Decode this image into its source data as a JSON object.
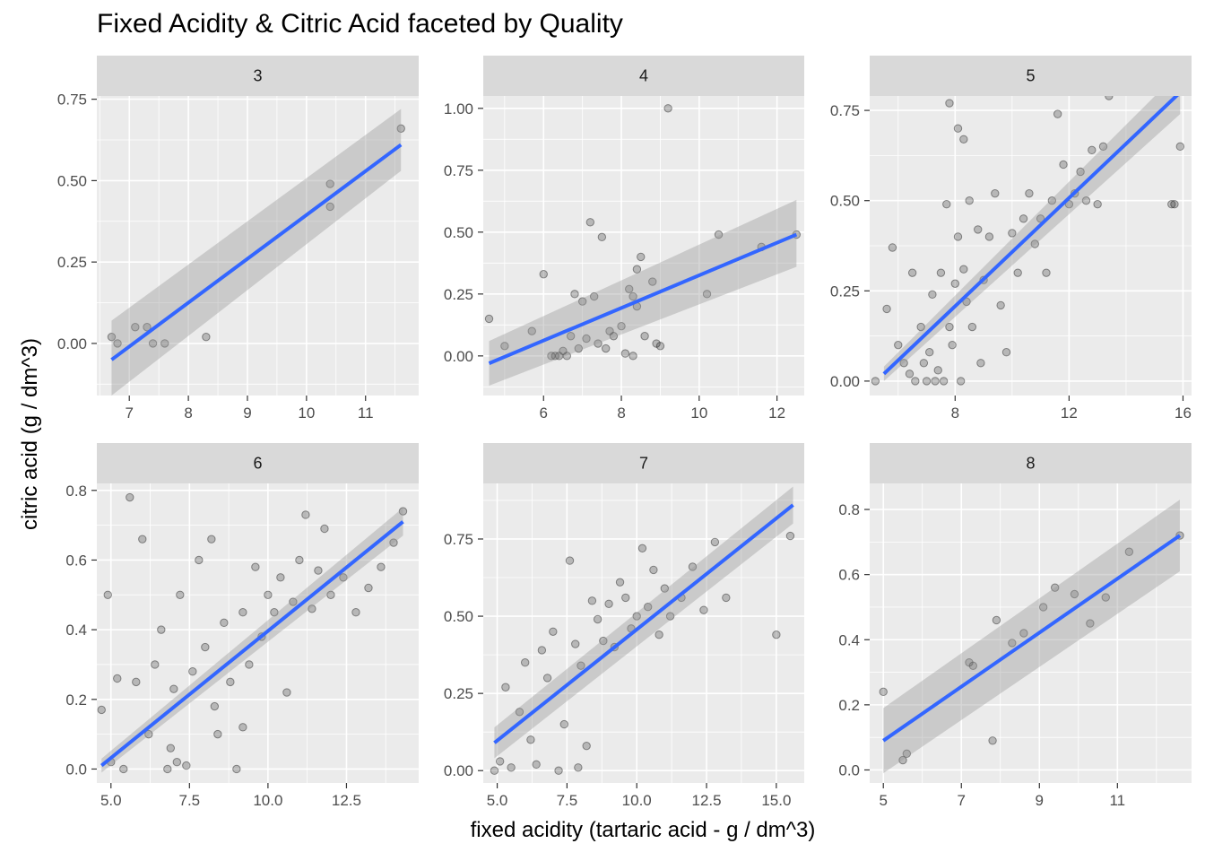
{
  "title": "Fixed Acidity & Citric Acid faceted by Quality",
  "xlabel": "fixed acidity (tartaric acid - g / dm^3)",
  "ylabel": "citric acid (g / dm^3)",
  "colors": {
    "panel_bg": "#EBEBEB",
    "strip_bg": "#D9D9D9",
    "grid": "#FFFFFF",
    "point": "#000000",
    "smooth_line": "#3366FF",
    "ribbon": "#999999"
  },
  "chart_data": [
    {
      "type": "scatter",
      "facet": "3",
      "xlim": [
        6.45,
        11.9
      ],
      "ylim": [
        -0.16,
        0.76
      ],
      "xticks": [
        7,
        8,
        9,
        10,
        11
      ],
      "xtick_labels": [
        "7",
        "8",
        "9",
        "10",
        "11"
      ],
      "yticks": [
        0,
        0.25,
        0.5,
        0.75
      ],
      "ytick_labels": [
        "0.00",
        "0.25",
        "0.50",
        "0.75"
      ],
      "points": [
        [
          6.7,
          0.02
        ],
        [
          6.8,
          0.0
        ],
        [
          7.1,
          0.05
        ],
        [
          7.3,
          0.05
        ],
        [
          7.4,
          0.0
        ],
        [
          7.6,
          0.0
        ],
        [
          8.3,
          0.02
        ],
        [
          10.4,
          0.42
        ],
        [
          10.4,
          0.49
        ],
        [
          11.6,
          0.66
        ]
      ],
      "fit": {
        "x": [
          6.7,
          11.6
        ],
        "y": [
          -0.05,
          0.61
        ],
        "lower": [
          -0.16,
          0.53
        ],
        "upper": [
          0.07,
          0.72
        ]
      }
    },
    {
      "type": "scatter",
      "facet": "4",
      "xlim": [
        4.45,
        12.7
      ],
      "ylim": [
        -0.16,
        1.05
      ],
      "xticks": [
        6,
        8,
        10,
        12
      ],
      "xtick_labels": [
        "6",
        "8",
        "10",
        "12"
      ],
      "yticks": [
        0,
        0.25,
        0.5,
        0.75,
        1.0
      ],
      "ytick_labels": [
        "0.00",
        "0.25",
        "0.50",
        "0.75",
        "1.00"
      ],
      "points": [
        [
          4.6,
          0.15
        ],
        [
          5.0,
          0.04
        ],
        [
          5.7,
          0.1
        ],
        [
          6.0,
          0.33
        ],
        [
          6.2,
          0.0
        ],
        [
          6.3,
          0.0
        ],
        [
          6.4,
          0.0
        ],
        [
          6.5,
          0.02
        ],
        [
          6.6,
          0.0
        ],
        [
          6.7,
          0.08
        ],
        [
          6.8,
          0.25
        ],
        [
          6.9,
          0.03
        ],
        [
          7.0,
          0.22
        ],
        [
          7.1,
          0.07
        ],
        [
          7.2,
          0.54
        ],
        [
          7.3,
          0.24
        ],
        [
          7.4,
          0.05
        ],
        [
          7.5,
          0.48
        ],
        [
          7.6,
          0.03
        ],
        [
          7.7,
          0.1
        ],
        [
          7.8,
          0.08
        ],
        [
          8.0,
          0.12
        ],
        [
          8.1,
          0.01
        ],
        [
          8.2,
          0.27
        ],
        [
          8.3,
          0.0
        ],
        [
          8.3,
          0.24
        ],
        [
          8.4,
          0.35
        ],
        [
          8.4,
          0.2
        ],
        [
          8.5,
          0.4
        ],
        [
          8.6,
          0.08
        ],
        [
          8.8,
          0.3
        ],
        [
          8.9,
          0.05
        ],
        [
          9.0,
          0.04
        ],
        [
          9.2,
          1.0
        ],
        [
          10.2,
          0.25
        ],
        [
          10.5,
          0.49
        ],
        [
          11.6,
          0.44
        ],
        [
          12.5,
          0.49
        ]
      ],
      "fit": {
        "x": [
          4.6,
          12.5
        ],
        "y": [
          -0.03,
          0.49
        ],
        "lower": [
          -0.12,
          0.36
        ],
        "upper": [
          0.06,
          0.63
        ]
      }
    },
    {
      "type": "scatter",
      "facet": "5",
      "xlim": [
        5.0,
        16.3
      ],
      "ylim": [
        -0.04,
        0.79
      ],
      "xticks": [
        8,
        12,
        16
      ],
      "xtick_labels": [
        "8",
        "12",
        "16"
      ],
      "yticks": [
        0,
        0.25,
        0.5,
        0.75
      ],
      "ytick_labels": [
        "0.00",
        "0.25",
        "0.50",
        "0.75"
      ],
      "points": [
        [
          5.2,
          0.0
        ],
        [
          5.6,
          0.2
        ],
        [
          5.8,
          0.37
        ],
        [
          6.0,
          0.1
        ],
        [
          6.2,
          0.05
        ],
        [
          6.4,
          0.02
        ],
        [
          6.5,
          0.3
        ],
        [
          6.6,
          0.0
        ],
        [
          6.8,
          0.15
        ],
        [
          6.9,
          0.05
        ],
        [
          7.0,
          0.0
        ],
        [
          7.1,
          0.08
        ],
        [
          7.2,
          0.24
        ],
        [
          7.3,
          0.0
        ],
        [
          7.4,
          0.03
        ],
        [
          7.5,
          0.3
        ],
        [
          7.6,
          0.0
        ],
        [
          7.7,
          0.49
        ],
        [
          7.8,
          0.15
        ],
        [
          7.9,
          0.1
        ],
        [
          8.0,
          0.27
        ],
        [
          8.1,
          0.4
        ],
        [
          8.2,
          0.0
        ],
        [
          8.3,
          0.31
        ],
        [
          8.4,
          0.22
        ],
        [
          8.5,
          0.5
        ],
        [
          8.6,
          0.15
        ],
        [
          8.8,
          0.42
        ],
        [
          8.9,
          0.05
        ],
        [
          9.0,
          0.28
        ],
        [
          9.2,
          0.4
        ],
        [
          9.4,
          0.52
        ],
        [
          9.6,
          0.21
        ],
        [
          9.8,
          0.08
        ],
        [
          10.0,
          0.41
        ],
        [
          10.2,
          0.3
        ],
        [
          10.4,
          0.45
        ],
        [
          10.6,
          0.52
        ],
        [
          10.8,
          0.38
        ],
        [
          11.0,
          0.45
        ],
        [
          11.2,
          0.3
        ],
        [
          11.4,
          0.5
        ],
        [
          11.6,
          0.74
        ],
        [
          11.8,
          0.6
        ],
        [
          12.0,
          0.49
        ],
        [
          12.2,
          0.52
        ],
        [
          12.4,
          0.58
        ],
        [
          12.6,
          0.5
        ],
        [
          12.8,
          0.64
        ],
        [
          13.0,
          0.49
        ],
        [
          13.2,
          0.65
        ],
        [
          13.4,
          0.79
        ],
        [
          15.6,
          0.49
        ],
        [
          15.7,
          0.49
        ],
        [
          15.9,
          0.65
        ],
        [
          7.8,
          0.77
        ],
        [
          8.1,
          0.7
        ],
        [
          8.3,
          0.67
        ]
      ],
      "fit": {
        "x": [
          5.5,
          15.9
        ],
        "y": [
          0.02,
          0.8
        ],
        "lower": [
          0.0,
          0.74
        ],
        "upper": [
          0.04,
          0.86
        ]
      }
    },
    {
      "type": "scatter",
      "facet": "6",
      "xlim": [
        4.55,
        14.8
      ],
      "ylim": [
        -0.04,
        0.82
      ],
      "xticks": [
        5.0,
        7.5,
        10.0,
        12.5
      ],
      "xtick_labels": [
        "5.0",
        "7.5",
        "10.0",
        "12.5"
      ],
      "yticks": [
        0,
        0.2,
        0.4,
        0.6,
        0.8
      ],
      "ytick_labels": [
        "0.0",
        "0.2",
        "0.4",
        "0.6",
        "0.8"
      ],
      "points": [
        [
          4.7,
          0.17
        ],
        [
          4.9,
          0.5
        ],
        [
          5.0,
          0.02
        ],
        [
          5.2,
          0.26
        ],
        [
          5.4,
          0.0
        ],
        [
          5.6,
          0.78
        ],
        [
          5.8,
          0.25
        ],
        [
          6.0,
          0.66
        ],
        [
          6.2,
          0.1
        ],
        [
          6.4,
          0.3
        ],
        [
          6.6,
          0.4
        ],
        [
          6.8,
          0.0
        ],
        [
          7.0,
          0.23
        ],
        [
          7.2,
          0.5
        ],
        [
          7.4,
          0.01
        ],
        [
          7.6,
          0.28
        ],
        [
          7.8,
          0.6
        ],
        [
          8.0,
          0.35
        ],
        [
          8.2,
          0.66
        ],
        [
          8.4,
          0.1
        ],
        [
          8.6,
          0.42
        ],
        [
          8.8,
          0.25
        ],
        [
          9.0,
          0.0
        ],
        [
          9.2,
          0.45
        ],
        [
          9.4,
          0.3
        ],
        [
          9.6,
          0.58
        ],
        [
          9.8,
          0.38
        ],
        [
          10.0,
          0.5
        ],
        [
          10.2,
          0.45
        ],
        [
          10.4,
          0.55
        ],
        [
          10.6,
          0.22
        ],
        [
          10.8,
          0.48
        ],
        [
          11.0,
          0.6
        ],
        [
          11.2,
          0.73
        ],
        [
          11.4,
          0.46
        ],
        [
          11.6,
          0.57
        ],
        [
          11.8,
          0.69
        ],
        [
          12.0,
          0.5
        ],
        [
          12.4,
          0.55
        ],
        [
          12.8,
          0.45
        ],
        [
          13.2,
          0.52
        ],
        [
          13.6,
          0.58
        ],
        [
          14.0,
          0.65
        ],
        [
          14.3,
          0.74
        ],
        [
          9.2,
          0.12
        ],
        [
          8.3,
          0.18
        ],
        [
          7.1,
          0.02
        ],
        [
          6.9,
          0.06
        ]
      ],
      "fit": {
        "x": [
          4.7,
          14.3
        ],
        "y": [
          0.01,
          0.71
        ],
        "lower": [
          -0.01,
          0.67
        ],
        "upper": [
          0.03,
          0.75
        ]
      }
    },
    {
      "type": "scatter",
      "facet": "7",
      "xlim": [
        4.5,
        16.0
      ],
      "ylim": [
        -0.04,
        0.93
      ],
      "xticks": [
        5.0,
        7.5,
        10.0,
        12.5,
        15.0
      ],
      "xtick_labels": [
        "5.0",
        "7.5",
        "10.0",
        "12.5",
        "15.0"
      ],
      "yticks": [
        0,
        0.25,
        0.5,
        0.75
      ],
      "ytick_labels": [
        "0.00",
        "0.25",
        "0.50",
        "0.75"
      ],
      "points": [
        [
          4.9,
          0.0
        ],
        [
          5.1,
          0.03
        ],
        [
          5.3,
          0.27
        ],
        [
          5.5,
          0.01
        ],
        [
          5.8,
          0.19
        ],
        [
          6.0,
          0.35
        ],
        [
          6.2,
          0.1
        ],
        [
          6.4,
          0.02
        ],
        [
          6.6,
          0.39
        ],
        [
          6.8,
          0.3
        ],
        [
          7.0,
          0.45
        ],
        [
          7.2,
          0.0
        ],
        [
          7.4,
          0.15
        ],
        [
          7.6,
          0.68
        ],
        [
          7.8,
          0.41
        ],
        [
          8.0,
          0.34
        ],
        [
          8.2,
          0.08
        ],
        [
          8.4,
          0.55
        ],
        [
          8.6,
          0.49
        ],
        [
          8.8,
          0.42
        ],
        [
          9.0,
          0.54
        ],
        [
          9.2,
          0.4
        ],
        [
          9.4,
          0.61
        ],
        [
          9.6,
          0.56
        ],
        [
          9.8,
          0.46
        ],
        [
          10.0,
          0.5
        ],
        [
          10.2,
          0.72
        ],
        [
          10.4,
          0.53
        ],
        [
          10.6,
          0.65
        ],
        [
          10.8,
          0.44
        ],
        [
          11.0,
          0.59
        ],
        [
          11.2,
          0.5
        ],
        [
          11.6,
          0.56
        ],
        [
          12.0,
          0.66
        ],
        [
          12.4,
          0.52
        ],
        [
          12.8,
          0.74
        ],
        [
          13.2,
          0.56
        ],
        [
          15.0,
          0.44
        ],
        [
          15.5,
          0.76
        ],
        [
          7.9,
          0.01
        ]
      ],
      "fit": {
        "x": [
          4.9,
          15.6
        ],
        "y": [
          0.09,
          0.86
        ],
        "lower": [
          0.04,
          0.8
        ],
        "upper": [
          0.14,
          0.92
        ]
      }
    },
    {
      "type": "scatter",
      "facet": "8",
      "xlim": [
        4.65,
        12.9
      ],
      "ylim": [
        -0.04,
        0.88
      ],
      "xticks": [
        5,
        7,
        9,
        11
      ],
      "xtick_labels": [
        "5",
        "7",
        "9",
        "11"
      ],
      "yticks": [
        0,
        0.2,
        0.4,
        0.6,
        0.8
      ],
      "ytick_labels": [
        "0.0",
        "0.2",
        "0.4",
        "0.6",
        "0.8"
      ],
      "points": [
        [
          5.0,
          0.24
        ],
        [
          5.5,
          0.03
        ],
        [
          5.6,
          0.05
        ],
        [
          7.2,
          0.33
        ],
        [
          7.3,
          0.32
        ],
        [
          7.8,
          0.09
        ],
        [
          7.9,
          0.46
        ],
        [
          8.3,
          0.39
        ],
        [
          8.6,
          0.42
        ],
        [
          9.1,
          0.5
        ],
        [
          9.4,
          0.56
        ],
        [
          9.9,
          0.54
        ],
        [
          10.3,
          0.45
        ],
        [
          10.7,
          0.53
        ],
        [
          11.3,
          0.67
        ],
        [
          12.6,
          0.72
        ]
      ],
      "fit": {
        "x": [
          5.0,
          12.6
        ],
        "y": [
          0.09,
          0.72
        ],
        "lower": [
          -0.01,
          0.61
        ],
        "upper": [
          0.19,
          0.83
        ]
      }
    }
  ]
}
